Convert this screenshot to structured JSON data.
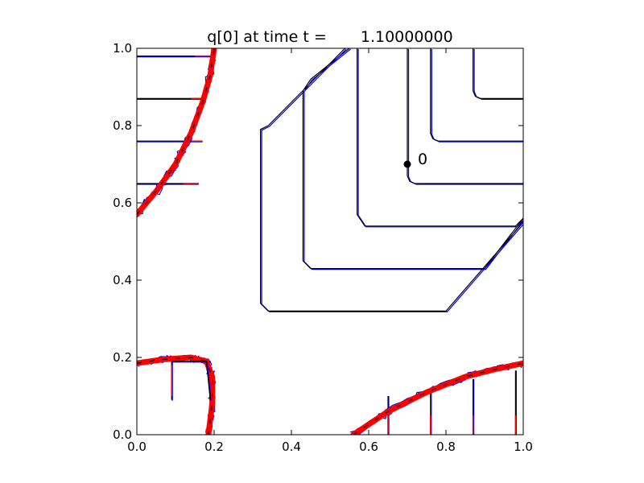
{
  "chart_data": {
    "type": "line",
    "title_prefix": "q[0] at time t =",
    "title_value": "1.10000000",
    "xlim": [
      0.0,
      1.0
    ],
    "ylim": [
      0.0,
      1.0
    ],
    "xticks": [
      "0.0",
      "0.2",
      "0.4",
      "0.6",
      "0.8",
      "1.0"
    ],
    "yticks": [
      "0.0",
      "0.2",
      "0.4",
      "0.6",
      "0.8",
      "1.0"
    ],
    "grid": false,
    "colors": {
      "black": "#000000",
      "blue": "#0000ff",
      "red": "#ff0000"
    },
    "marker": {
      "x": 0.7,
      "y": 0.7,
      "label": "0"
    },
    "contours_upper_right": [
      {
        "corner": [
          0.7,
          0.65
        ],
        "arm_top": 1.0,
        "arm_right": 1.0
      },
      {
        "corner": [
          0.76,
          0.76
        ],
        "arm_top": 1.0,
        "arm_right": 1.0
      },
      {
        "corner": [
          0.87,
          0.87
        ],
        "arm_top": 1.0,
        "arm_right": 1.0
      },
      {
        "corner": [
          0.57,
          0.54
        ],
        "arm_top": 1.0,
        "arm_right": 1.0
      },
      {
        "corner": [
          0.43,
          0.43
        ],
        "arm_top": 1.0,
        "arm_right": 0.98
      },
      {
        "corner": [
          0.32,
          0.32
        ],
        "arm_top": 0.99,
        "arm_right": 0.99
      }
    ],
    "contours_top_left_levels": [
      0.65,
      0.76,
      0.87,
      0.98
    ],
    "contours_bottom_right_levels": [
      0.65,
      0.76,
      0.87,
      0.98
    ],
    "front_top_left": [
      [
        0.0,
        0.57
      ],
      [
        0.05,
        0.63
      ],
      [
        0.1,
        0.7
      ],
      [
        0.14,
        0.78
      ],
      [
        0.17,
        0.86
      ],
      [
        0.19,
        0.93
      ],
      [
        0.2,
        1.0
      ]
    ],
    "front_bottom_right": [
      [
        0.56,
        0.0
      ],
      [
        0.65,
        0.06
      ],
      [
        0.75,
        0.11
      ],
      [
        0.85,
        0.15
      ],
      [
        0.93,
        0.17
      ],
      [
        1.0,
        0.185
      ]
    ],
    "front_bottom_left": [
      [
        0.0,
        0.185
      ],
      [
        0.07,
        0.195
      ],
      [
        0.14,
        0.2
      ],
      [
        0.18,
        0.19
      ],
      [
        0.195,
        0.15
      ],
      [
        0.195,
        0.08
      ],
      [
        0.185,
        0.0
      ]
    ],
    "front_bottom_left_inner": [
      [
        0.09,
        0.09
      ],
      [
        0.09,
        0.19
      ],
      [
        0.18,
        0.19
      ],
      [
        0.19,
        0.09
      ]
    ]
  }
}
